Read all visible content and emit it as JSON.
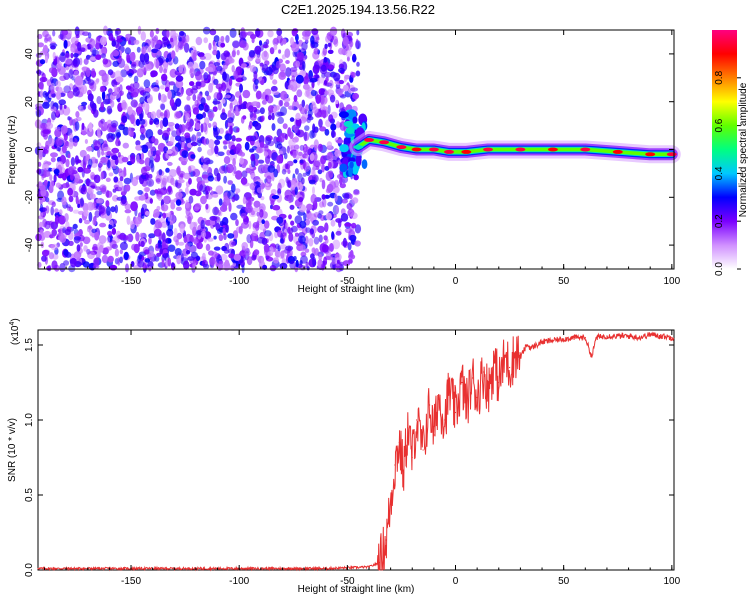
{
  "title": "C2E1.2025.194.13.56.R22",
  "chart_data": [
    {
      "type": "heatmap",
      "xlabel": "Height of straight line (km)",
      "ylabel": "Frequency (Hz)",
      "xlim": [
        -193,
        101
      ],
      "ylim": [
        -50,
        50
      ],
      "x_ticks": [
        -150,
        -100,
        -50,
        0,
        50,
        100
      ],
      "y_ticks": [
        -40,
        -20,
        0,
        20,
        40
      ],
      "colorbar": {
        "label": "Normalized spectral amplitude",
        "range": [
          0,
          1
        ],
        "ticks": [
          "0.0",
          "0.2",
          "0.4",
          "0.6",
          "0.8"
        ],
        "colors": [
          "#ffffff",
          "#d090ff",
          "#7a00ff",
          "#0000ff",
          "#00c8ff",
          "#00ff80",
          "#60ff00",
          "#ffff00",
          "#ff8000",
          "#ff0000",
          "#ff0080"
        ]
      },
      "noise_region_x": [
        -193,
        -45
      ],
      "signal_track": [
        {
          "x": -45,
          "y": 1,
          "v": 0.45
        },
        {
          "x": -40,
          "y": 4,
          "v": 0.95
        },
        {
          "x": -33,
          "y": 3,
          "v": 0.95
        },
        {
          "x": -25,
          "y": 1,
          "v": 0.95
        },
        {
          "x": -18,
          "y": 0,
          "v": 0.9
        },
        {
          "x": -10,
          "y": 0,
          "v": 0.95
        },
        {
          "x": -3,
          "y": -1,
          "v": 0.95
        },
        {
          "x": 5,
          "y": -1,
          "v": 0.9
        },
        {
          "x": 15,
          "y": 0,
          "v": 0.95
        },
        {
          "x": 30,
          "y": 0,
          "v": 0.95
        },
        {
          "x": 45,
          "y": 0,
          "v": 0.9
        },
        {
          "x": 60,
          "y": 0,
          "v": 0.95
        },
        {
          "x": 75,
          "y": -1,
          "v": 0.9
        },
        {
          "x": 90,
          "y": -2,
          "v": 0.9
        },
        {
          "x": 100,
          "y": -2,
          "v": 0.95
        }
      ]
    },
    {
      "type": "line",
      "xlabel": "Height of straight line (km)",
      "ylabel": "SNR (10 * v/v)",
      "scale_note": "(x10",
      "scale_exp": "4",
      "xlim": [
        -193,
        101
      ],
      "ylim": [
        0,
        1.6
      ],
      "x_ticks": [
        -150,
        -100,
        -50,
        0,
        50,
        100
      ],
      "y_ticks": [
        "0.0",
        "0.5",
        "1.0",
        "1.5"
      ],
      "line_color": "#e83030",
      "series": [
        {
          "x": [
            -193,
            -150,
            -100,
            -60,
            -40,
            -35,
            -32,
            -30,
            -28,
            -26,
            -24,
            -22,
            -20,
            -18,
            -15,
            -12,
            -10,
            -8,
            -5,
            -3,
            0,
            3,
            5,
            8,
            10,
            13,
            15,
            18,
            20,
            23,
            25,
            28,
            30,
            33,
            35,
            40,
            45,
            50,
            55,
            60,
            63,
            65,
            70,
            75,
            80,
            85,
            90,
            95,
            100
          ],
          "y": [
            0.01,
            0.01,
            0.01,
            0.01,
            0.02,
            0.05,
            0.2,
            0.45,
            0.7,
            0.85,
            0.65,
            0.95,
            0.75,
            1.0,
            0.8,
            1.1,
            0.9,
            1.15,
            1.0,
            1.2,
            1.05,
            1.25,
            1.1,
            1.28,
            1.15,
            1.32,
            1.2,
            1.38,
            1.25,
            1.42,
            1.35,
            1.45,
            1.42,
            1.5,
            1.48,
            1.52,
            1.53,
            1.54,
            1.55,
            1.55,
            1.42,
            1.55,
            1.56,
            1.56,
            1.56,
            1.55,
            1.57,
            1.56,
            1.55
          ]
        }
      ]
    }
  ]
}
